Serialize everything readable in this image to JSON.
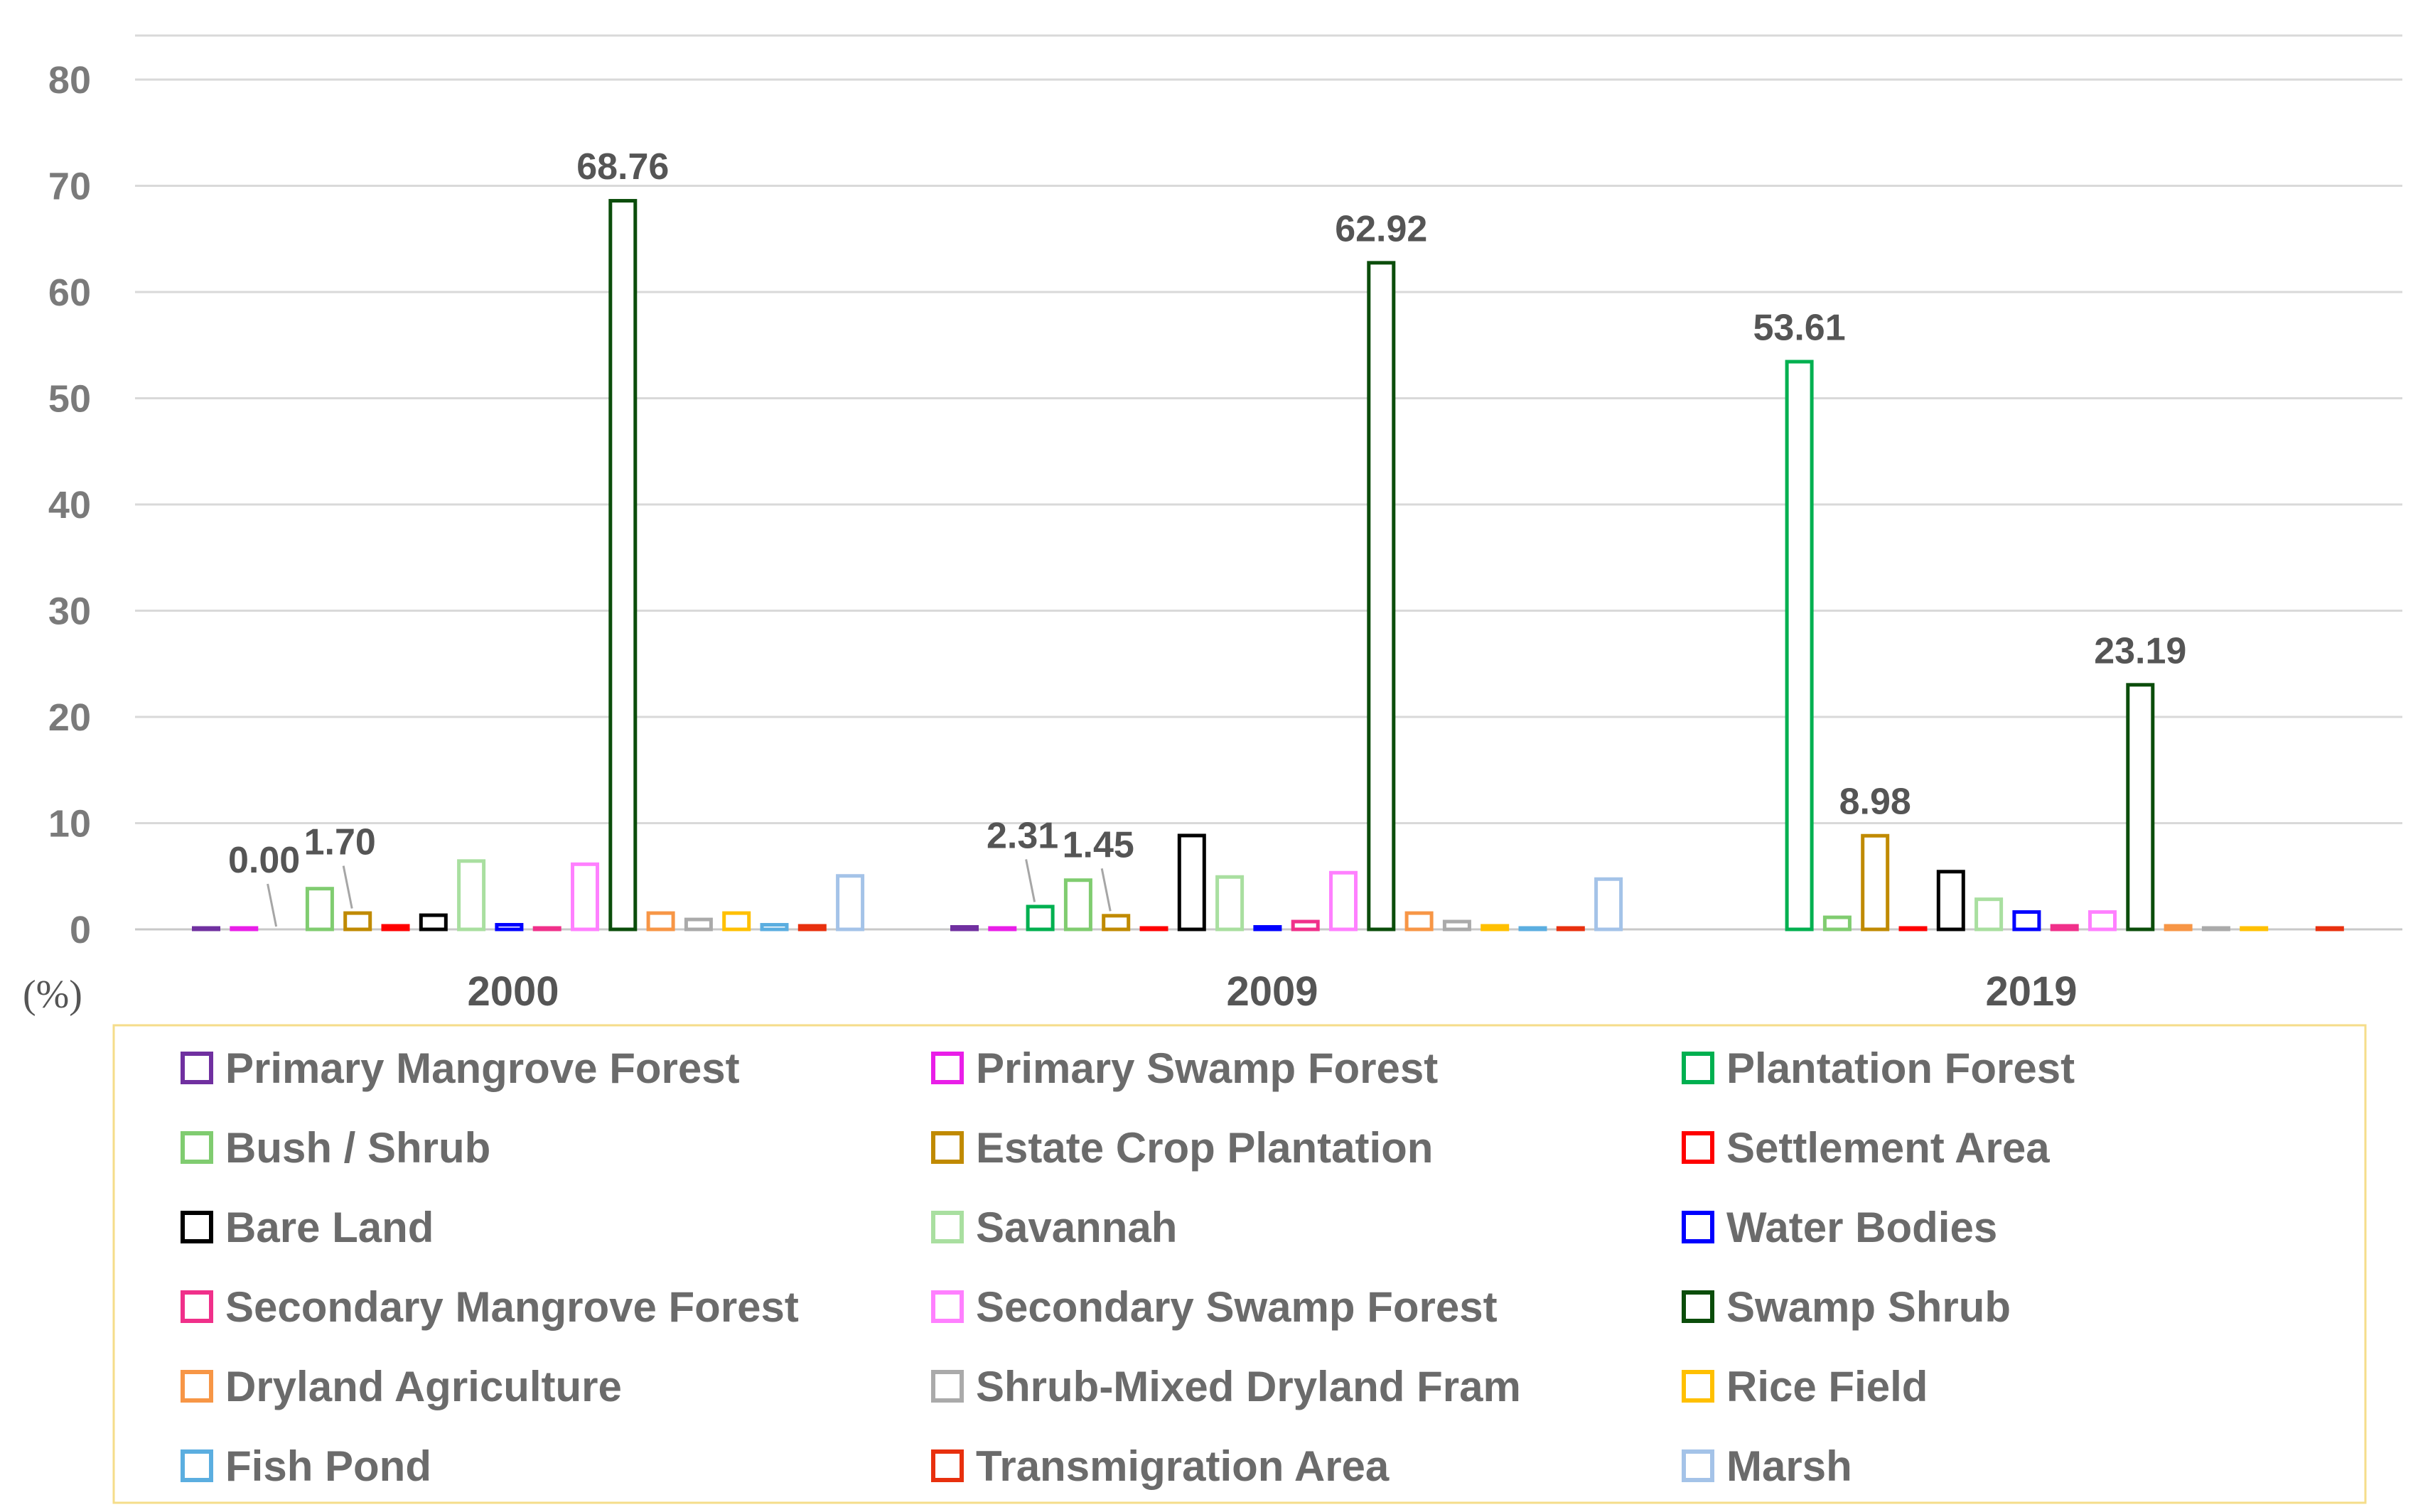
{
  "chart_data": {
    "type": "bar",
    "title": "",
    "ylabel": "(%)",
    "xlabel": "",
    "ylim": [
      0,
      80
    ],
    "yticks": [
      0,
      10,
      20,
      30,
      40,
      50,
      60,
      70,
      80
    ],
    "grid": true,
    "legend_position": "bottom",
    "categories": [
      "2000",
      "2009",
      "2019"
    ],
    "series": [
      {
        "name": "Primary Mangrove Forest",
        "color": "#7030A0",
        "values": [
          0.3,
          0.4,
          null
        ]
      },
      {
        "name": "Primary Swamp Forest",
        "color": "#E91EE8",
        "values": [
          0.3,
          0.3,
          null
        ]
      },
      {
        "name": "Plantation Forest",
        "color": "#00B050",
        "values": [
          0.0,
          2.31,
          53.61
        ]
      },
      {
        "name": "Bush / Shrub",
        "color": "#80CC70",
        "values": [
          4.0,
          4.8,
          1.3
        ]
      },
      {
        "name": "Estate Crop Plantation",
        "color": "#C08A00",
        "values": [
          1.7,
          1.45,
          8.98
        ]
      },
      {
        "name": "Settlement Area",
        "color": "#FF0000",
        "values": [
          0.5,
          0.3,
          0.3
        ]
      },
      {
        "name": "Bare Land",
        "color": "#000000",
        "values": [
          1.5,
          9.0,
          5.6
        ]
      },
      {
        "name": "Savannah",
        "color": "#A9DFA0",
        "values": [
          6.6,
          5.1,
          3.0
        ]
      },
      {
        "name": "Water Bodies",
        "color": "#0000FF",
        "values": [
          0.6,
          0.4,
          1.8
        ]
      },
      {
        "name": "Secondary Mangrove Forest",
        "color": "#F0308A",
        "values": [
          0.3,
          0.9,
          0.5
        ]
      },
      {
        "name": "Secondary Swamp Forest",
        "color": "#FF80FF",
        "values": [
          6.3,
          5.5,
          1.8
        ]
      },
      {
        "name": "Swamp Shrub",
        "color": "#0B4D0B",
        "values": [
          68.76,
          62.92,
          23.19
        ]
      },
      {
        "name": "Dryland Agriculture",
        "color": "#F79646",
        "values": [
          1.7,
          1.7,
          0.5
        ]
      },
      {
        "name": "Shrub-Mixed Dryland Fram",
        "color": "#AAAAAA",
        "values": [
          1.1,
          0.9,
          0.3
        ]
      },
      {
        "name": "Rice Field",
        "color": "#FFC000",
        "values": [
          1.7,
          0.5,
          0.3
        ]
      },
      {
        "name": "Fish Pond",
        "color": "#5BAEE0",
        "values": [
          0.6,
          0.3,
          null
        ]
      },
      {
        "name": "Transmigration Area",
        "color": "#E8300E",
        "values": [
          0.5,
          0.3,
          0.3
        ]
      },
      {
        "name": "Marsh",
        "color": "#A4C3E8",
        "values": [
          5.2,
          4.9,
          null
        ]
      }
    ],
    "data_labels": [
      {
        "category": 0,
        "series": 2,
        "text": "0.00",
        "leader": true
      },
      {
        "category": 0,
        "series": 4,
        "text": "1.70",
        "leader": true
      },
      {
        "category": 0,
        "series": 11,
        "text": "68.76",
        "leader": false
      },
      {
        "category": 1,
        "series": 2,
        "text": "2.31",
        "leader": true
      },
      {
        "category": 1,
        "series": 4,
        "text": "1.45",
        "leader": true
      },
      {
        "category": 1,
        "series": 11,
        "text": "62.92",
        "leader": false
      },
      {
        "category": 2,
        "series": 2,
        "text": "53.61",
        "leader": false
      },
      {
        "category": 2,
        "series": 4,
        "text": "8.98",
        "leader": false
      },
      {
        "category": 2,
        "series": 11,
        "text": "23.19",
        "leader": false
      }
    ]
  }
}
